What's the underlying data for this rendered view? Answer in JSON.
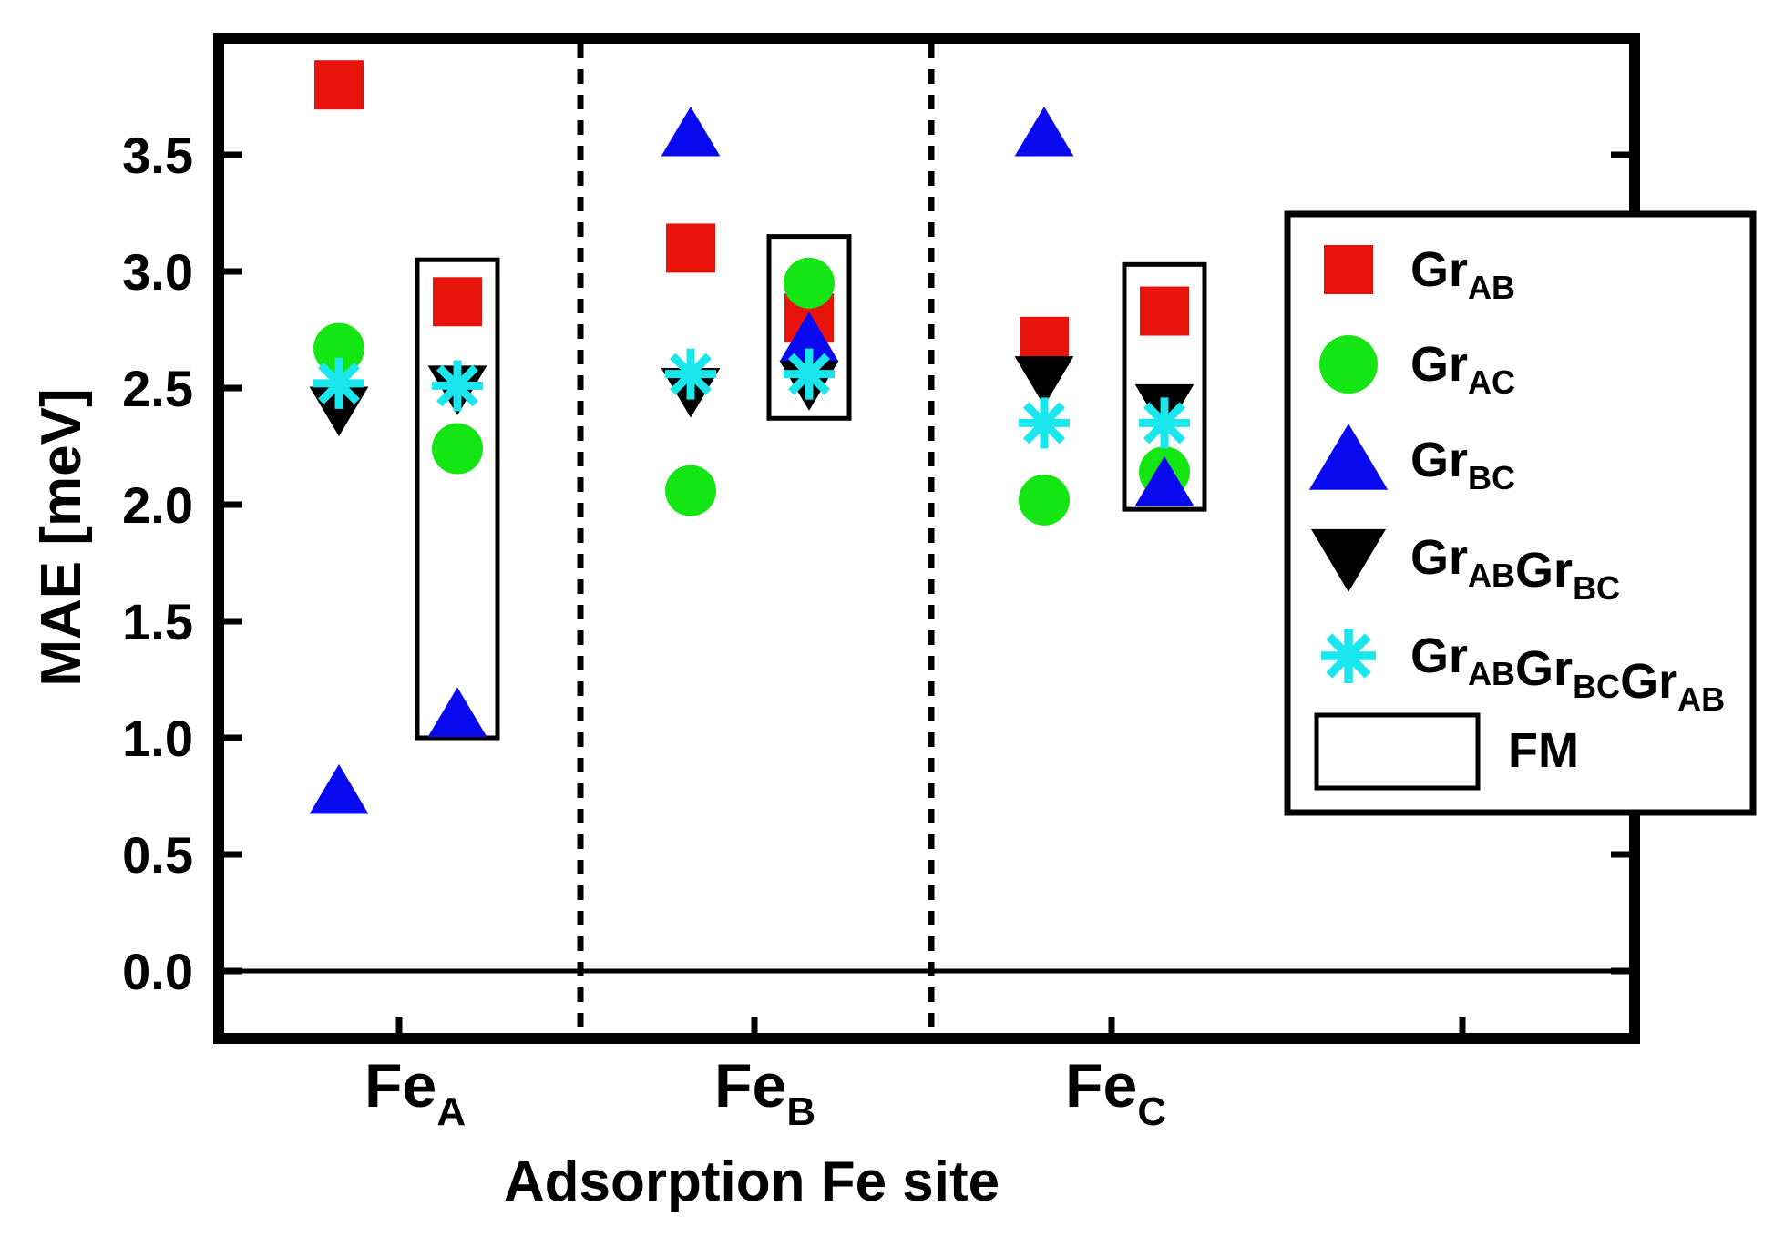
{
  "chart_data": {
    "type": "scatter",
    "title": "",
    "xlabel": "Adsorption Fe site",
    "ylabel": "MAE [meV]",
    "ylim": [
      -0.3,
      4.0
    ],
    "yticks": [
      "0.0",
      "0.5",
      "1.0",
      "1.5",
      "2.0",
      "2.5",
      "3.0",
      "3.5"
    ],
    "categories": [
      {
        "main": "Fe",
        "sub": "A"
      },
      {
        "main": "Fe",
        "sub": "B"
      },
      {
        "main": "Fe",
        "sub": "C"
      }
    ],
    "series": [
      {
        "name": "GrAB",
        "label_parts": [
          [
            "Gr",
            "AB"
          ]
        ],
        "marker": "square",
        "color": "#e8140c",
        "values": [
          3.8,
          3.1,
          2.7
        ],
        "fm_values": [
          2.87,
          2.8,
          2.83
        ]
      },
      {
        "name": "GrAC",
        "label_parts": [
          [
            "Gr",
            "AC"
          ]
        ],
        "marker": "circle",
        "color": "#14e614",
        "values": [
          2.67,
          2.06,
          2.02
        ],
        "fm_values": [
          2.24,
          2.95,
          2.14
        ]
      },
      {
        "name": "GrBC",
        "label_parts": [
          [
            "Gr",
            "BC"
          ]
        ],
        "marker": "triangle-up",
        "color": "#0a0af0",
        "values": [
          0.77,
          3.59,
          3.59
        ],
        "fm_values": [
          1.1,
          2.71,
          2.09
        ]
      },
      {
        "name": "GrABGrBC",
        "label_parts": [
          [
            "Gr",
            "AB"
          ],
          [
            "Gr",
            "BC"
          ]
        ],
        "marker": "triangle-down",
        "color": "#000000",
        "values": [
          2.41,
          2.49,
          2.54
        ],
        "fm_values": [
          2.5,
          2.52,
          2.42
        ]
      },
      {
        "name": "GrABGrBCGrAB",
        "label_parts": [
          [
            "Gr",
            "AB"
          ],
          [
            "Gr",
            "BC"
          ],
          [
            "Gr",
            "AB"
          ]
        ],
        "marker": "asterisk",
        "color": "#19e6ed",
        "values": [
          2.52,
          2.56,
          2.35
        ],
        "fm_values": [
          2.51,
          2.56,
          2.35
        ]
      }
    ],
    "fm_label": "FM",
    "fm_box_ranges": [
      [
        1.0,
        3.05
      ],
      [
        2.37,
        3.15
      ],
      [
        1.98,
        3.03
      ]
    ],
    "reference_line_y": 0.0,
    "group_separators": true,
    "legend_position": "right"
  }
}
